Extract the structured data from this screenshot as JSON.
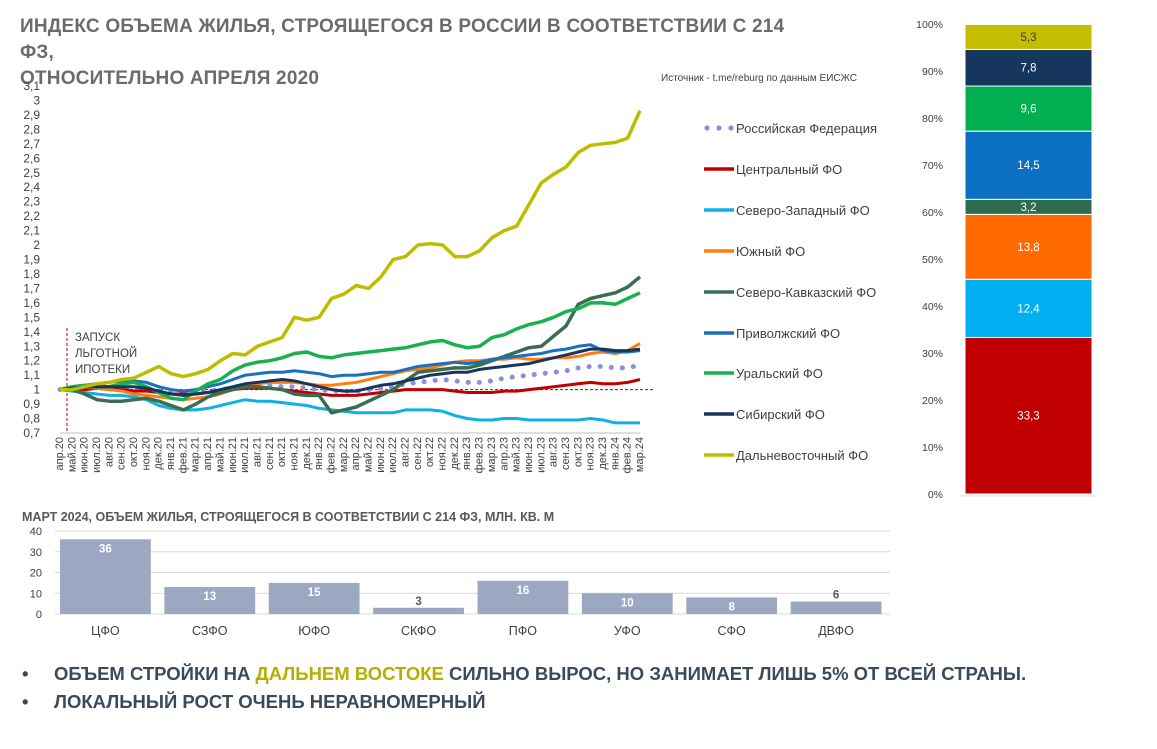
{
  "title_line1": "ИНДЕКС ОБЪЕМА ЖИЛЬЯ, СТРОЯЩЕГОСЯ В РОССИИ В СООТВЕТСТВИИ С 214 ФЗ,",
  "title_line2": "ОТНОСИТЕЛЬНО АПРЕЛЯ 2020",
  "source": "Источник - t.me/reburg по данным ЕИСЖС",
  "bullets": {
    "b1_pre": "ОБЪЕМ СТРОЙКИ НА ",
    "b1_hl": "ДАЛЬНЕМ ВОСТОКЕ",
    "b1_post": " СИЛЬНО ВЫРОС, НО ЗАНИМАЕТ ЛИШЬ 5% ОТ ВСЕЙ СТРАНЫ.",
    "b2": "ЛОКАЛЬНЫЙ РОСТ ОЧЕНЬ НЕРАВНОМЕРНЫЙ",
    "marker": "•"
  },
  "chart_data": [
    {
      "type": "line",
      "title": "",
      "annotation": [
        "ЗАПУСК",
        "ЛЬГОТНОЙ",
        "ИПОТЕКИ"
      ],
      "annotation_x": "апр.20",
      "reference_y": 1,
      "ylim": [
        0.7,
        3.1
      ],
      "yticks": [
        "0,7",
        "0,8",
        "0,9",
        "1",
        "1,1",
        "1,2",
        "1,3",
        "1,4",
        "1,5",
        "1,6",
        "1,7",
        "1,8",
        "1,9",
        "2",
        "2,1",
        "2,2",
        "2,3",
        "2,4",
        "2,5",
        "2,6",
        "2,7",
        "2,8",
        "2,9",
        "3",
        "3,1"
      ],
      "x": [
        "апр.20",
        "май.20",
        "июн.20",
        "июл.20",
        "авг.20",
        "сен.20",
        "окт.20",
        "ноя.20",
        "дек.20",
        "янв.21",
        "фев.21",
        "мар.21",
        "апр.21",
        "май.21",
        "июн.21",
        "июл.21",
        "авг.21",
        "сен.21",
        "окт.21",
        "ноя.21",
        "дек.21",
        "янв.22",
        "фев.22",
        "мар.22",
        "апр.22",
        "май.22",
        "июн.22",
        "июл.22",
        "авг.22",
        "сен.22",
        "окт.22",
        "ноя.22",
        "дек.22",
        "янв.23",
        "фев.23",
        "мар.23",
        "апр.23",
        "май.23",
        "июн.23",
        "июл.23",
        "авг.23",
        "сен.23",
        "окт.23",
        "ноя.23",
        "дек.23",
        "янв.24",
        "фев.24",
        "мар.24"
      ],
      "legend_position": "right",
      "series": [
        {
          "name": "Российская Федерация",
          "color": "#8e8ee0",
          "style": "dotted",
          "values": [
            1,
            1.01,
            1.01,
            1.02,
            1.02,
            1.01,
            1,
            1,
            0.99,
            0.98,
            0.97,
            0.98,
            0.99,
            1,
            1.01,
            1.02,
            1.03,
            1.03,
            1.02,
            1.02,
            1.01,
            1,
            0.99,
            0.99,
            0.99,
            1,
            1.01,
            1.02,
            1.04,
            1.05,
            1.06,
            1.07,
            1.06,
            1.05,
            1.05,
            1.06,
            1.08,
            1.09,
            1.1,
            1.11,
            1.12,
            1.13,
            1.15,
            1.16,
            1.16,
            1.15,
            1.15,
            1.17
          ]
        },
        {
          "name": "Центральный ФО",
          "color": "#c00000",
          "style": "solid",
          "values": [
            1,
            1,
            1,
            1.01,
            1,
            1,
            0.99,
            0.99,
            0.98,
            0.97,
            0.97,
            0.97,
            0.98,
            0.99,
            1,
            1.01,
            1.01,
            1.01,
            1,
            0.99,
            0.98,
            0.97,
            0.96,
            0.96,
            0.96,
            0.97,
            0.98,
            0.99,
            1,
            1,
            1,
            1,
            0.99,
            0.98,
            0.98,
            0.98,
            0.99,
            0.99,
            1,
            1.01,
            1.02,
            1.03,
            1.04,
            1.05,
            1.04,
            1.04,
            1.05,
            1.07
          ]
        },
        {
          "name": "Северо-Западный ФО",
          "color": "#0eb0e8",
          "style": "solid",
          "values": [
            1,
            0.99,
            0.98,
            0.97,
            0.96,
            0.96,
            0.95,
            0.93,
            0.89,
            0.87,
            0.86,
            0.86,
            0.87,
            0.89,
            0.91,
            0.93,
            0.92,
            0.92,
            0.91,
            0.9,
            0.89,
            0.87,
            0.86,
            0.85,
            0.84,
            0.84,
            0.84,
            0.84,
            0.86,
            0.86,
            0.86,
            0.85,
            0.82,
            0.8,
            0.79,
            0.79,
            0.8,
            0.8,
            0.79,
            0.79,
            0.79,
            0.79,
            0.79,
            0.8,
            0.79,
            0.77,
            0.77,
            0.77
          ]
        },
        {
          "name": "Южный ФО",
          "color": "#ff7e14",
          "style": "solid",
          "values": [
            1,
            1.01,
            1.02,
            1.01,
            1,
            0.99,
            0.97,
            0.96,
            0.95,
            0.94,
            0.93,
            0.94,
            0.95,
            0.97,
            1,
            1.02,
            1.04,
            1.05,
            1.05,
            1.05,
            1.04,
            1.03,
            1.03,
            1.04,
            1.05,
            1.07,
            1.09,
            1.11,
            1.13,
            1.14,
            1.15,
            1.17,
            1.19,
            1.2,
            1.2,
            1.21,
            1.21,
            1.22,
            1.21,
            1.21,
            1.22,
            1.22,
            1.23,
            1.25,
            1.26,
            1.25,
            1.27,
            1.32
          ]
        },
        {
          "name": "Северо-Кавказский ФО",
          "color": "#3a6e4e",
          "style": "solid",
          "values": [
            1,
            1,
            0.97,
            0.93,
            0.92,
            0.92,
            0.93,
            0.94,
            0.92,
            0.89,
            0.86,
            0.9,
            0.95,
            0.98,
            1.0,
            1.02,
            1.02,
            1.01,
            1.0,
            0.97,
            0.96,
            0.96,
            0.84,
            0.86,
            0.88,
            0.92,
            0.96,
            1.0,
            1.06,
            1.12,
            1.13,
            1.14,
            1.15,
            1.15,
            1.17,
            1.2,
            1.23,
            1.26,
            1.29,
            1.3,
            1.37,
            1.44,
            1.59,
            1.63,
            1.65,
            1.67,
            1.71,
            1.78
          ]
        },
        {
          "name": "Приволжский ФО",
          "color": "#1a6fbf",
          "style": "solid",
          "values": [
            1,
            1.02,
            1.03,
            1.04,
            1.05,
            1.06,
            1.06,
            1.05,
            1.02,
            1.0,
            0.99,
            1.0,
            1.02,
            1.04,
            1.07,
            1.1,
            1.11,
            1.12,
            1.12,
            1.13,
            1.12,
            1.11,
            1.09,
            1.1,
            1.1,
            1.11,
            1.12,
            1.12,
            1.14,
            1.16,
            1.17,
            1.18,
            1.19,
            1.18,
            1.19,
            1.21,
            1.22,
            1.23,
            1.24,
            1.25,
            1.27,
            1.28,
            1.3,
            1.31,
            1.27,
            1.26,
            1.26,
            1.27
          ]
        },
        {
          "name": "Уральский ФО",
          "color": "#1aaf50",
          "style": "solid",
          "values": [
            1,
            1.02,
            1.03,
            1.02,
            1.02,
            1.04,
            1.05,
            1.02,
            0.98,
            0.94,
            0.93,
            0.99,
            1.04,
            1.07,
            1.13,
            1.17,
            1.19,
            1.2,
            1.22,
            1.25,
            1.26,
            1.23,
            1.22,
            1.24,
            1.25,
            1.26,
            1.27,
            1.28,
            1.29,
            1.31,
            1.33,
            1.34,
            1.31,
            1.29,
            1.3,
            1.36,
            1.38,
            1.42,
            1.45,
            1.47,
            1.5,
            1.54,
            1.56,
            1.6,
            1.6,
            1.59,
            1.63,
            1.67
          ]
        },
        {
          "name": "Сибирский ФО",
          "color": "#17365d",
          "style": "solid",
          "values": [
            1,
            1.01,
            1.02,
            1.02,
            1.02,
            1.02,
            1.02,
            1.01,
            0.99,
            0.97,
            0.96,
            0.97,
            0.98,
            1.0,
            1.02,
            1.04,
            1.05,
            1.06,
            1.07,
            1.06,
            1.04,
            1.02,
            1.0,
            0.99,
            0.99,
            1.01,
            1.03,
            1.04,
            1.06,
            1.08,
            1.1,
            1.11,
            1.12,
            1.12,
            1.14,
            1.15,
            1.16,
            1.17,
            1.18,
            1.2,
            1.22,
            1.24,
            1.26,
            1.28,
            1.28,
            1.27,
            1.27,
            1.28
          ]
        },
        {
          "name": "Дальневосточный ФО",
          "color": "#bdbd00",
          "style": "solid",
          "values": [
            1,
            1.0,
            1.02,
            1.04,
            1.05,
            1.07,
            1.08,
            1.12,
            1.16,
            1.11,
            1.09,
            1.11,
            1.14,
            1.2,
            1.25,
            1.24,
            1.3,
            1.33,
            1.36,
            1.5,
            1.48,
            1.5,
            1.63,
            1.66,
            1.72,
            1.7,
            1.78,
            1.9,
            1.92,
            2.0,
            2.01,
            2.0,
            1.92,
            1.92,
            1.96,
            2.05,
            2.1,
            2.13,
            2.28,
            2.43,
            2.49,
            2.54,
            2.64,
            2.69,
            2.7,
            2.71,
            2.74,
            2.93
          ]
        }
      ]
    },
    {
      "type": "bar",
      "title": "МАРТ 2024, ОБЪЕМ ЖИЛЬЯ, СТРОЯЩЕГОСЯ В СООТВЕТСТВИИ С 214 ФЗ, МЛН. КВ. М",
      "categories": [
        "ЦФО",
        "СЗФО",
        "ЮФО",
        "СКФО",
        "ПФО",
        "УФО",
        "СФО",
        "ДВФО"
      ],
      "values": [
        36,
        13,
        15,
        3,
        16,
        10,
        8,
        6
      ],
      "value_labels": [
        "36",
        "13",
        "15",
        "3",
        "16",
        "10",
        "8",
        "6"
      ],
      "ylim": [
        0,
        40
      ],
      "yticks": [
        "0",
        "10",
        "20",
        "30",
        "40"
      ],
      "bar_color": "#9ca7c2"
    },
    {
      "type": "stacked-bar",
      "title": "",
      "ylim": [
        0,
        100
      ],
      "yticks": [
        "0%",
        "10%",
        "20%",
        "30%",
        "40%",
        "50%",
        "60%",
        "70%",
        "80%",
        "90%",
        "100%"
      ],
      "segments": [
        {
          "value": 33.3,
          "label": "33,3",
          "color": "#c00000",
          "text_color": "#ffffff"
        },
        {
          "value": 12.4,
          "label": "12,4",
          "color": "#00b0f0",
          "text_color": "#ffffff"
        },
        {
          "value": 13.8,
          "label": "13,8",
          "color": "#ff6a00",
          "text_color": "#ffffff"
        },
        {
          "value": 3.2,
          "label": "3,2",
          "color": "#2e6b4f",
          "text_color": "#ffffff"
        },
        {
          "value": 14.5,
          "label": "14,5",
          "color": "#0b6fc4",
          "text_color": "#ffffff"
        },
        {
          "value": 9.6,
          "label": "9,6",
          "color": "#00b050",
          "text_color": "#ffffff"
        },
        {
          "value": 7.8,
          "label": "7,8",
          "color": "#17365d",
          "text_color": "#ffffff"
        },
        {
          "value": 5.3,
          "label": "5,3",
          "color": "#c4bd00",
          "text_color": "#404040"
        }
      ]
    }
  ]
}
